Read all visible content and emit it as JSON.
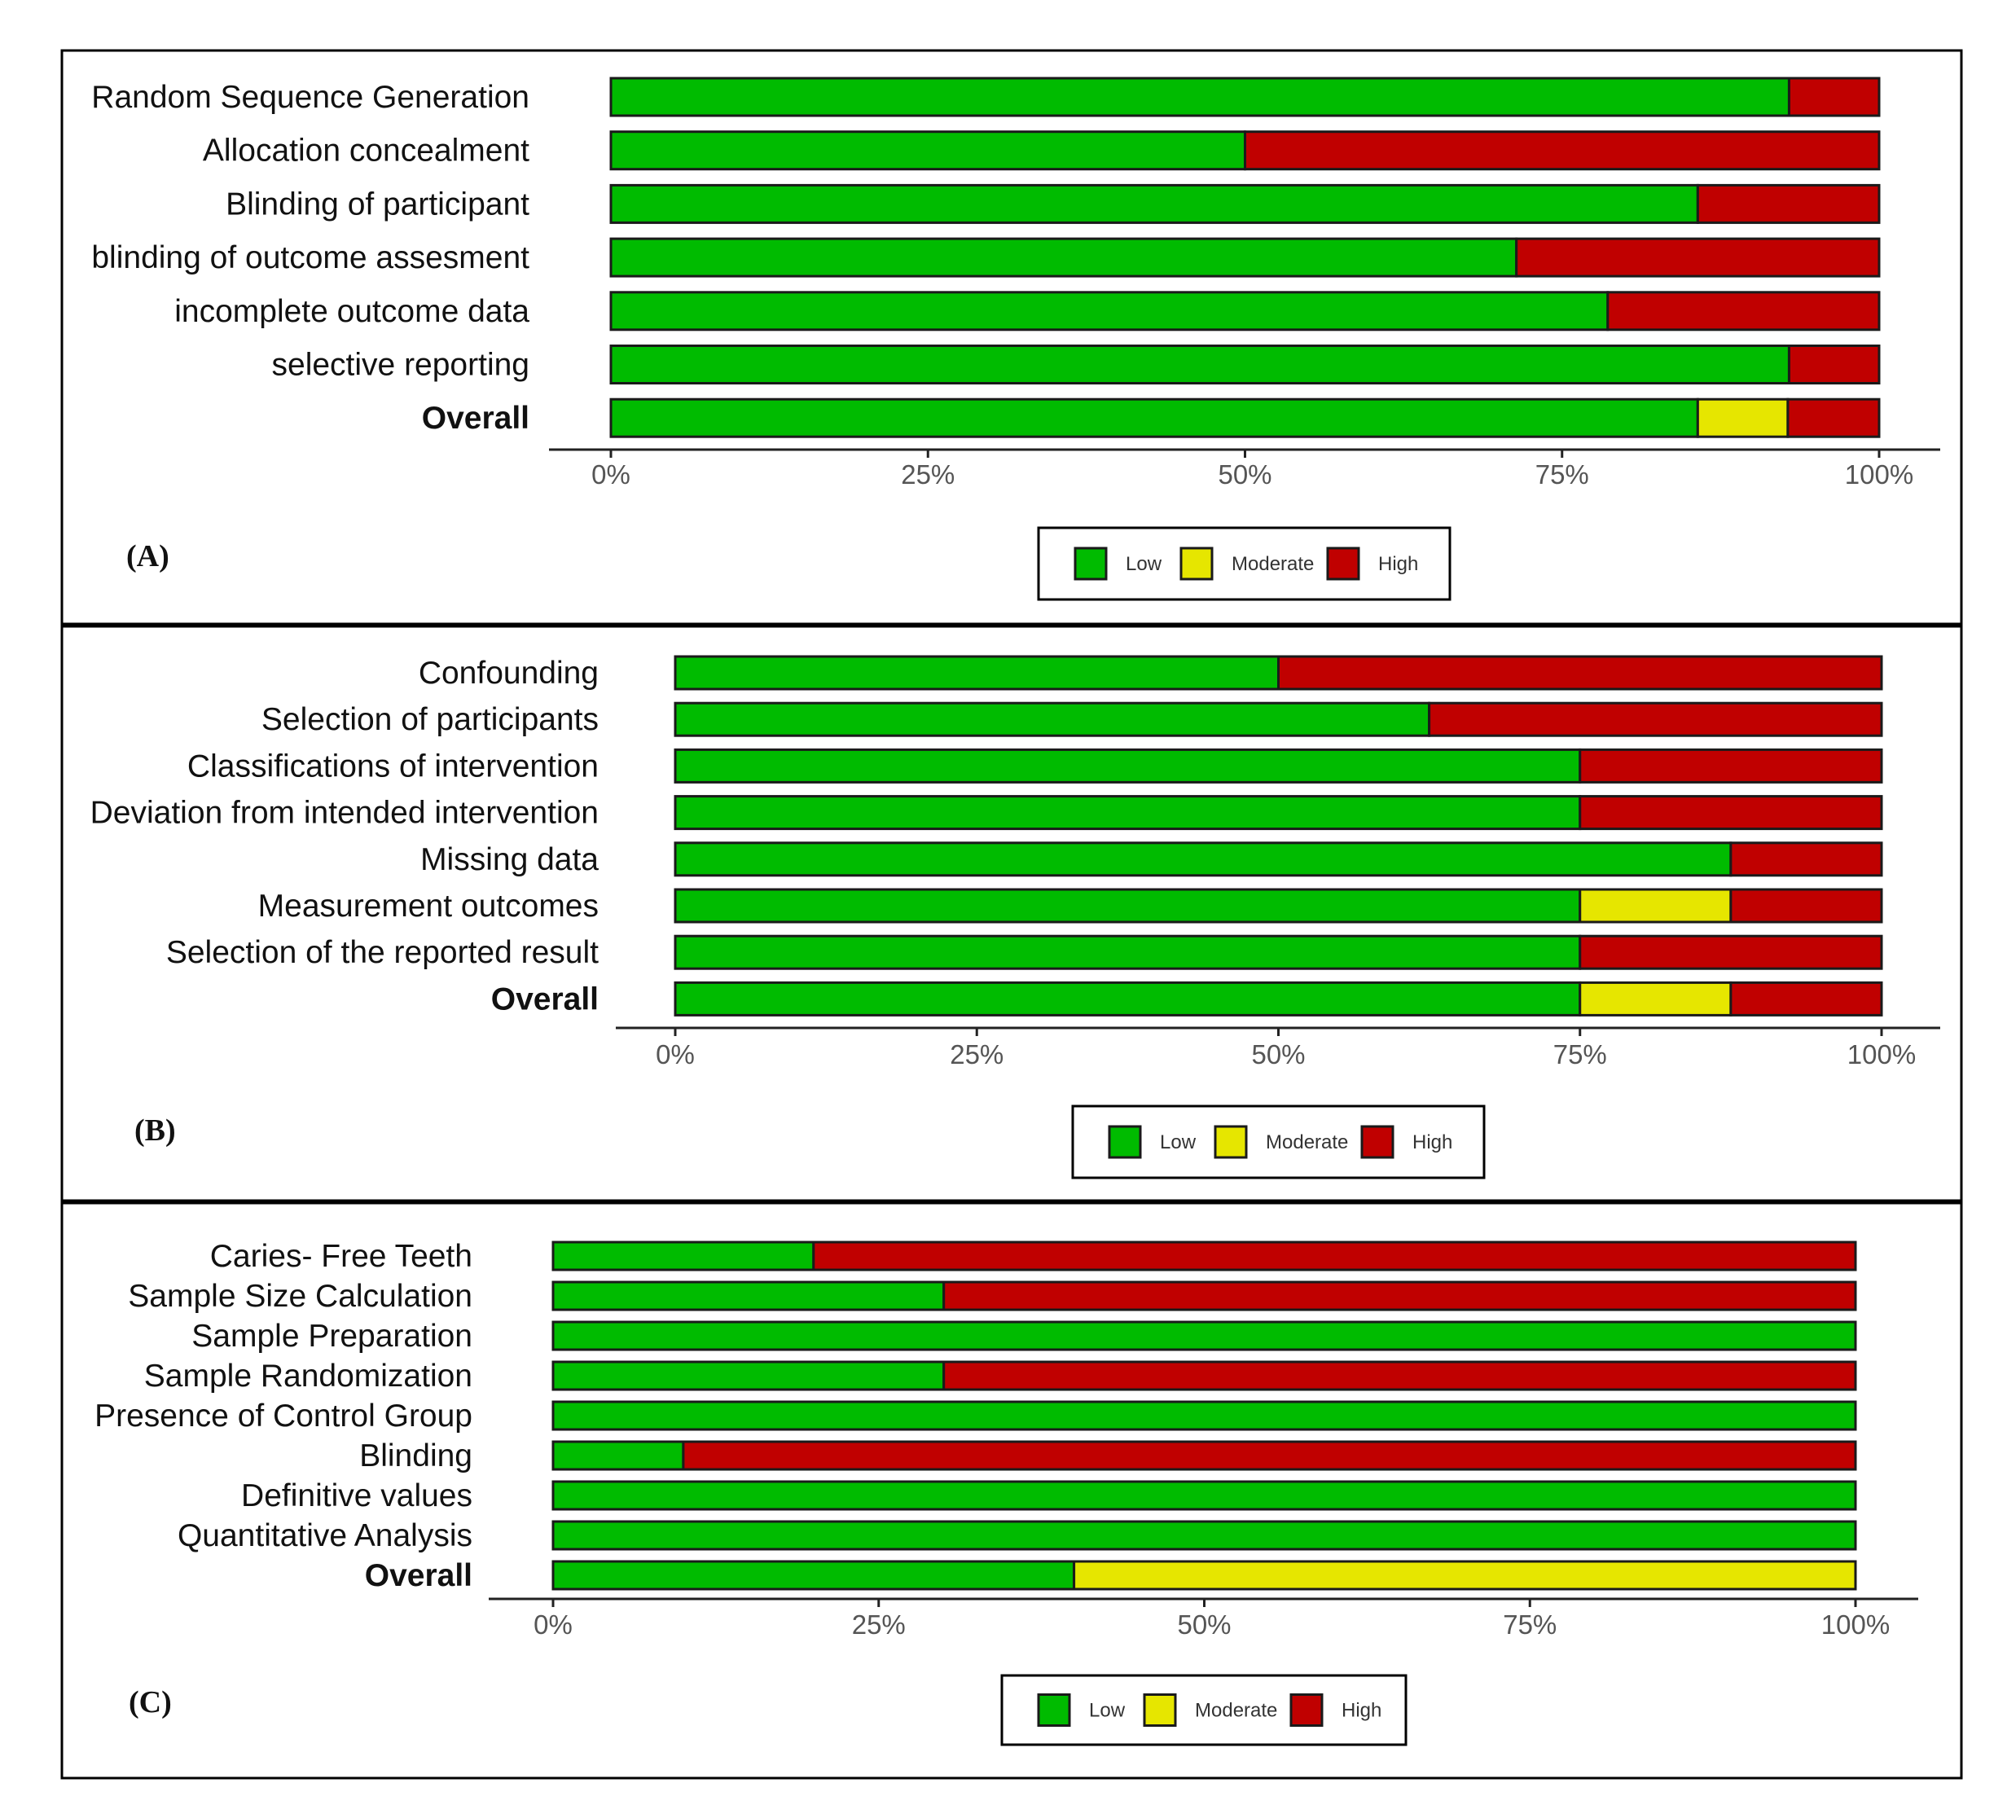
{
  "colors": {
    "Low": "#00bb00",
    "Moderate": "#e6e600",
    "High": "#c00000"
  },
  "chart_data": [
    {
      "type": "bar",
      "orientation": "horizontal",
      "stacked": true,
      "panel_label": "(A)",
      "categories": [
        "Random Sequence Generation",
        "Allocation concealment",
        "Blinding of participant",
        "blinding of outcome assesment",
        "incomplete outcome data",
        "selective reporting",
        "Overall"
      ],
      "bold_categories": [
        "Overall"
      ],
      "series": [
        {
          "name": "Low",
          "values": [
            92.9,
            50.0,
            85.7,
            71.4,
            78.6,
            92.9,
            85.7
          ]
        },
        {
          "name": "Moderate",
          "values": [
            0,
            0,
            0,
            0,
            0,
            0,
            7.1
          ]
        },
        {
          "name": "High",
          "values": [
            7.1,
            50.0,
            14.3,
            28.6,
            21.4,
            7.1,
            7.2
          ]
        }
      ],
      "x_ticks": [
        "0%",
        "25%",
        "50%",
        "75%",
        "100%"
      ],
      "xlim": [
        0,
        100
      ],
      "legend": [
        "Low",
        "Moderate",
        "High"
      ]
    },
    {
      "type": "bar",
      "orientation": "horizontal",
      "stacked": true,
      "panel_label": "(B)",
      "categories": [
        "Confounding",
        "Selection of participants",
        "Classifications of intervention",
        "Deviation from  intended intervention",
        "Missing data",
        "Measurement outcomes",
        "Selection of the reported result",
        "Overall"
      ],
      "bold_categories": [
        "Overall"
      ],
      "series": [
        {
          "name": "Low",
          "values": [
            50.0,
            62.5,
            75.0,
            75.0,
            87.5,
            75.0,
            75.0,
            75.0
          ]
        },
        {
          "name": "Moderate",
          "values": [
            0,
            0,
            0,
            0,
            0,
            12.5,
            0,
            12.5
          ]
        },
        {
          "name": "High",
          "values": [
            50.0,
            37.5,
            25.0,
            25.0,
            12.5,
            12.5,
            25.0,
            12.5
          ]
        }
      ],
      "x_ticks": [
        "0%",
        "25%",
        "50%",
        "75%",
        "100%"
      ],
      "xlim": [
        0,
        100
      ],
      "legend": [
        "Low",
        "Moderate",
        "High"
      ]
    },
    {
      "type": "bar",
      "orientation": "horizontal",
      "stacked": true,
      "panel_label": "(C)",
      "categories": [
        "Caries- Free Teeth",
        "Sample Size Calculation",
        "Sample Preparation",
        "Sample Randomization",
        "Presence of Control Group",
        "Blinding",
        "Definitive values",
        "Quantitative Analysis",
        "Overall"
      ],
      "bold_categories": [
        "Overall"
      ],
      "series": [
        {
          "name": "Low",
          "values": [
            20,
            30,
            100,
            30,
            100,
            10,
            100,
            100,
            40
          ]
        },
        {
          "name": "Moderate",
          "values": [
            0,
            0,
            0,
            0,
            0,
            0,
            0,
            0,
            60
          ]
        },
        {
          "name": "High",
          "values": [
            80,
            70,
            0,
            70,
            0,
            90,
            0,
            0,
            0
          ]
        }
      ],
      "x_ticks": [
        "0%",
        "25%",
        "50%",
        "75%",
        "100%"
      ],
      "xlim": [
        0,
        100
      ],
      "legend": [
        "Low",
        "Moderate",
        "High"
      ]
    }
  ]
}
